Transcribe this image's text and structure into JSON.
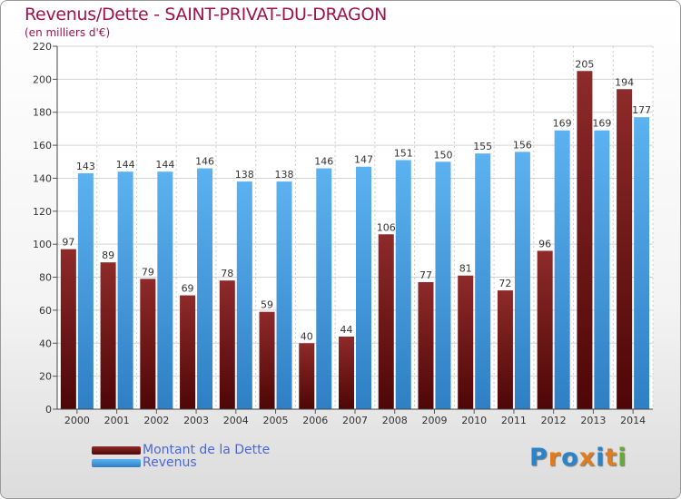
{
  "title": "Revenus/Dette - SAINT-PRIVAT-DU-DRAGON",
  "subtitle": "(en milliers d'€)",
  "logo": {
    "text": "Proxiti",
    "letter_colors": [
      "#2c84c8",
      "#e07b1f",
      "#2c84c8",
      "#e07b1f",
      "#2c84c8",
      "#e07b1f",
      "#6aa83b"
    ]
  },
  "chart_data": {
    "type": "bar",
    "categories": [
      "2000",
      "2001",
      "2002",
      "2003",
      "2004",
      "2005",
      "2006",
      "2007",
      "2008",
      "2009",
      "2010",
      "2011",
      "2012",
      "2013",
      "2014"
    ],
    "series": [
      {
        "name": "Montant de la Dette",
        "color": "#7a1d1d",
        "values": [
          97,
          89,
          79,
          69,
          78,
          59,
          40,
          44,
          106,
          77,
          81,
          72,
          96,
          205,
          194
        ]
      },
      {
        "name": "Revenus",
        "color": "#4ea7e8",
        "values": [
          143,
          144,
          144,
          146,
          138,
          138,
          146,
          147,
          151,
          150,
          155,
          156,
          169,
          169,
          177
        ]
      }
    ],
    "ylim": [
      0,
      220
    ],
    "yticks": [
      0,
      20,
      40,
      60,
      80,
      100,
      120,
      140,
      160,
      180,
      200,
      220
    ],
    "grid": true,
    "legend_position": "bottom-left"
  }
}
